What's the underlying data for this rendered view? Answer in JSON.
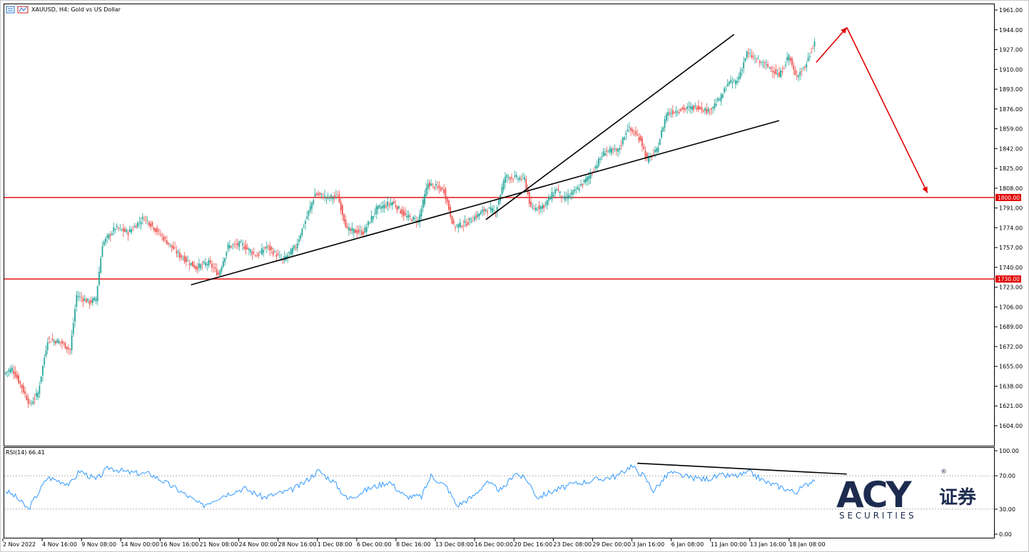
{
  "header": {
    "symbol_title": "XAUUSD, H4:  Gold vs US Dollar"
  },
  "rsi": {
    "label": "RSI(14) 66.41",
    "value": 66.41,
    "levels": [
      70,
      30
    ],
    "ticks": [
      "100.00",
      "70.00",
      "30.00",
      "0.00"
    ]
  },
  "price_axis": {
    "ticks": [
      "1961.00",
      "1944.00",
      "1927.00",
      "1910.00",
      "1893.00",
      "1876.00",
      "1859.00",
      "1842.00",
      "1825.00",
      "1808.00",
      "1791.00",
      "1774.00",
      "1757.00",
      "1740.00",
      "1723.00",
      "1706.00",
      "1689.00",
      "1672.00",
      "1655.00",
      "1638.00",
      "1621.00",
      "1604.00"
    ]
  },
  "time_axis": {
    "ticks": [
      "2 Nov 2022",
      "4 Nov 16:00",
      "9 Nov 08:00",
      "14 Nov 00:00",
      "16 Nov 16:00",
      "21 Nov 08:00",
      "24 Nov 00:00",
      "28 Nov 16:00",
      "1 Dec 08:00",
      "6 Dec 00:00",
      "8 Dec 16:00",
      "13 Dec 08:00",
      "16 Dec 00:00",
      "20 Dec 16:00",
      "23 Dec 08:00",
      "29 Dec 00:00",
      "3 Jan 16:00",
      "6 Jan 08:00",
      "11 Jan 00:00",
      "13 Jan 16:00",
      "18 Jan 08:00"
    ]
  },
  "levels": [
    {
      "price": 1800,
      "label": "1800.00"
    },
    {
      "price": 1730,
      "label": "1730.00"
    }
  ],
  "colors": {
    "bull": "#26a69a",
    "bear": "#ef5350",
    "level": "#e00000",
    "arrow": "#e00000",
    "trend": "#000000",
    "rsi": "#1e90ff",
    "logo": "#1d2b4f"
  },
  "logo": {
    "main": "ACY",
    "registered": "®",
    "chinese": "证券",
    "sub": "S E C U R I T I E S"
  },
  "chart_data": {
    "type": "candlestick",
    "symbol": "XAUUSD",
    "timeframe": "H4",
    "ylim": [
      1595,
      1966
    ],
    "horizontal_levels": [
      1800,
      1730
    ],
    "anchors": [
      {
        "t": 0,
        "p": 1650
      },
      {
        "t": 4,
        "p": 1653
      },
      {
        "t": 9,
        "p": 1640
      },
      {
        "t": 15,
        "p": 1622
      },
      {
        "t": 20,
        "p": 1632
      },
      {
        "t": 26,
        "p": 1678
      },
      {
        "t": 34,
        "p": 1676
      },
      {
        "t": 40,
        "p": 1669
      },
      {
        "t": 44,
        "p": 1716
      },
      {
        "t": 52,
        "p": 1710
      },
      {
        "t": 56,
        "p": 1713
      },
      {
        "t": 60,
        "p": 1760
      },
      {
        "t": 68,
        "p": 1774
      },
      {
        "t": 76,
        "p": 1770
      },
      {
        "t": 86,
        "p": 1783
      },
      {
        "t": 96,
        "p": 1768
      },
      {
        "t": 108,
        "p": 1750
      },
      {
        "t": 118,
        "p": 1740
      },
      {
        "t": 126,
        "p": 1744
      },
      {
        "t": 132,
        "p": 1734
      },
      {
        "t": 138,
        "p": 1758
      },
      {
        "t": 146,
        "p": 1760
      },
      {
        "t": 156,
        "p": 1750
      },
      {
        "t": 162,
        "p": 1758
      },
      {
        "t": 172,
        "p": 1746
      },
      {
        "t": 180,
        "p": 1758
      },
      {
        "t": 186,
        "p": 1780
      },
      {
        "t": 192,
        "p": 1803
      },
      {
        "t": 200,
        "p": 1800
      },
      {
        "t": 206,
        "p": 1801
      },
      {
        "t": 212,
        "p": 1772
      },
      {
        "t": 222,
        "p": 1770
      },
      {
        "t": 230,
        "p": 1790
      },
      {
        "t": 240,
        "p": 1796
      },
      {
        "t": 248,
        "p": 1784
      },
      {
        "t": 256,
        "p": 1780
      },
      {
        "t": 262,
        "p": 1812
      },
      {
        "t": 272,
        "p": 1806
      },
      {
        "t": 278,
        "p": 1775
      },
      {
        "t": 286,
        "p": 1778
      },
      {
        "t": 298,
        "p": 1790
      },
      {
        "t": 304,
        "p": 1788
      },
      {
        "t": 310,
        "p": 1818
      },
      {
        "t": 322,
        "p": 1816
      },
      {
        "t": 326,
        "p": 1790
      },
      {
        "t": 334,
        "p": 1793
      },
      {
        "t": 342,
        "p": 1808
      },
      {
        "t": 346,
        "p": 1798
      },
      {
        "t": 354,
        "p": 1806
      },
      {
        "t": 362,
        "p": 1818
      },
      {
        "t": 372,
        "p": 1840
      },
      {
        "t": 380,
        "p": 1840
      },
      {
        "t": 386,
        "p": 1860
      },
      {
        "t": 394,
        "p": 1850
      },
      {
        "t": 398,
        "p": 1832
      },
      {
        "t": 404,
        "p": 1840
      },
      {
        "t": 410,
        "p": 1872
      },
      {
        "t": 420,
        "p": 1876
      },
      {
        "t": 430,
        "p": 1878
      },
      {
        "t": 436,
        "p": 1874
      },
      {
        "t": 444,
        "p": 1886
      },
      {
        "t": 448,
        "p": 1898
      },
      {
        "t": 454,
        "p": 1900
      },
      {
        "t": 460,
        "p": 1924
      },
      {
        "t": 468,
        "p": 1916
      },
      {
        "t": 476,
        "p": 1910
      },
      {
        "t": 480,
        "p": 1904
      },
      {
        "t": 486,
        "p": 1922
      },
      {
        "t": 490,
        "p": 1904
      },
      {
        "t": 496,
        "p": 1912
      },
      {
        "t": 502,
        "p": 1934
      }
    ],
    "rsi_anchors": [
      {
        "t": 0,
        "v": 52
      },
      {
        "t": 6,
        "v": 45
      },
      {
        "t": 14,
        "v": 30
      },
      {
        "t": 26,
        "v": 68
      },
      {
        "t": 40,
        "v": 60
      },
      {
        "t": 46,
        "v": 76
      },
      {
        "t": 56,
        "v": 65
      },
      {
        "t": 64,
        "v": 80
      },
      {
        "t": 76,
        "v": 74
      },
      {
        "t": 90,
        "v": 72
      },
      {
        "t": 108,
        "v": 52
      },
      {
        "t": 122,
        "v": 34
      },
      {
        "t": 134,
        "v": 46
      },
      {
        "t": 148,
        "v": 55
      },
      {
        "t": 160,
        "v": 44
      },
      {
        "t": 176,
        "v": 52
      },
      {
        "t": 184,
        "v": 60
      },
      {
        "t": 194,
        "v": 76
      },
      {
        "t": 204,
        "v": 62
      },
      {
        "t": 212,
        "v": 42
      },
      {
        "t": 226,
        "v": 55
      },
      {
        "t": 238,
        "v": 63
      },
      {
        "t": 248,
        "v": 45
      },
      {
        "t": 258,
        "v": 45
      },
      {
        "t": 264,
        "v": 70
      },
      {
        "t": 274,
        "v": 56
      },
      {
        "t": 280,
        "v": 34
      },
      {
        "t": 290,
        "v": 45
      },
      {
        "t": 298,
        "v": 62
      },
      {
        "t": 308,
        "v": 52
      },
      {
        "t": 316,
        "v": 74
      },
      {
        "t": 324,
        "v": 64
      },
      {
        "t": 330,
        "v": 44
      },
      {
        "t": 340,
        "v": 52
      },
      {
        "t": 352,
        "v": 60
      },
      {
        "t": 366,
        "v": 65
      },
      {
        "t": 380,
        "v": 70
      },
      {
        "t": 388,
        "v": 82
      },
      {
        "t": 396,
        "v": 70
      },
      {
        "t": 402,
        "v": 52
      },
      {
        "t": 412,
        "v": 74
      },
      {
        "t": 424,
        "v": 68
      },
      {
        "t": 434,
        "v": 66
      },
      {
        "t": 444,
        "v": 70
      },
      {
        "t": 454,
        "v": 70
      },
      {
        "t": 462,
        "v": 74
      },
      {
        "t": 472,
        "v": 62
      },
      {
        "t": 482,
        "v": 56
      },
      {
        "t": 490,
        "v": 50
      },
      {
        "t": 496,
        "v": 58
      },
      {
        "t": 502,
        "v": 66.41
      }
    ],
    "trendlines": [
      {
        "t1": 115,
        "p1": 1725,
        "t2": 480,
        "p2": 1866
      },
      {
        "t1": 298,
        "p1": 1781,
        "t2": 452,
        "p2": 1940
      }
    ],
    "rsi_trendline": {
      "t1": 392,
      "v1": 85,
      "t2": 522,
      "v2": 72
    },
    "projection_arrows": [
      {
        "t1": 503,
        "p1": 1916,
        "t2": 522,
        "p2": 1946
      },
      {
        "t1": 522,
        "p1": 1946,
        "t2": 572,
        "p2": 1804
      }
    ]
  }
}
